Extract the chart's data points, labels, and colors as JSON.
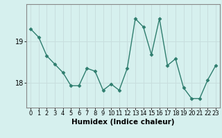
{
  "x": [
    0,
    1,
    2,
    3,
    4,
    5,
    6,
    7,
    8,
    9,
    10,
    11,
    12,
    13,
    14,
    15,
    16,
    17,
    18,
    19,
    20,
    21,
    22,
    23
  ],
  "y": [
    19.3,
    19.1,
    18.65,
    18.45,
    18.25,
    17.93,
    17.93,
    18.35,
    18.28,
    17.82,
    17.97,
    17.82,
    18.35,
    19.55,
    19.35,
    18.68,
    19.55,
    18.42,
    18.58,
    17.88,
    17.62,
    17.62,
    18.07,
    18.42
  ],
  "line_color": "#2e7d6e",
  "marker": "D",
  "marker_size": 2.5,
  "bg_color": "#d6f0ee",
  "grid_color": "#c8dede",
  "axis_color": "#888888",
  "xlabel": "Humidex (Indice chaleur)",
  "yticks": [
    18,
    19
  ],
  "ylim": [
    17.4,
    19.9
  ],
  "xlim": [
    -0.5,
    23.5
  ],
  "tick_fontsize": 6,
  "label_fontsize": 7.5
}
